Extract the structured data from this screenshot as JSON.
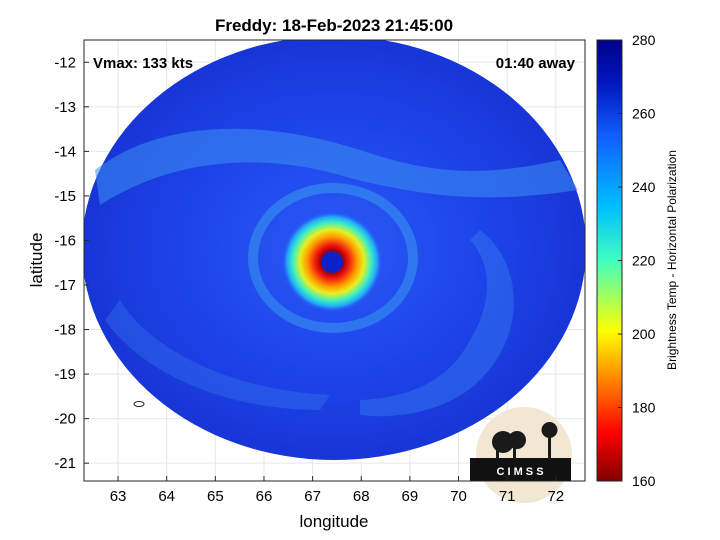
{
  "chart_data": {
    "type": "heatmap",
    "title": "Freddy: 18-Feb-2023 21:45:00",
    "xlabel": "longitude",
    "ylabel": "latitude",
    "xlim": [
      62.3,
      72.6
    ],
    "ylim": [
      -21.4,
      -11.5
    ],
    "xticks": [
      63,
      64,
      65,
      66,
      67,
      68,
      69,
      70,
      71,
      72
    ],
    "yticks": [
      -12,
      -13,
      -14,
      -15,
      -16,
      -17,
      -18,
      -19,
      -20,
      -21
    ],
    "grid": true,
    "annotations": {
      "vmax": "Vmax: 133 kts",
      "time_offset": "01:40 away"
    },
    "eye_center": {
      "lon": 67.4,
      "lat": -16.5
    },
    "colorbar": {
      "label": "Brightness Temp - Horizontal Polarization",
      "range": [
        160,
        280
      ],
      "ticks": [
        160,
        180,
        200,
        220,
        240,
        260,
        280
      ],
      "colormap": "jet"
    },
    "logo_text": "C I M S S"
  },
  "colors": {
    "field_blue": "#1f3fe6",
    "band_light": "#3aa0f0",
    "eyewall_red": "#e81c10",
    "eye_blue": "#0b22c8",
    "logo_bg": "#f1e7d2"
  }
}
